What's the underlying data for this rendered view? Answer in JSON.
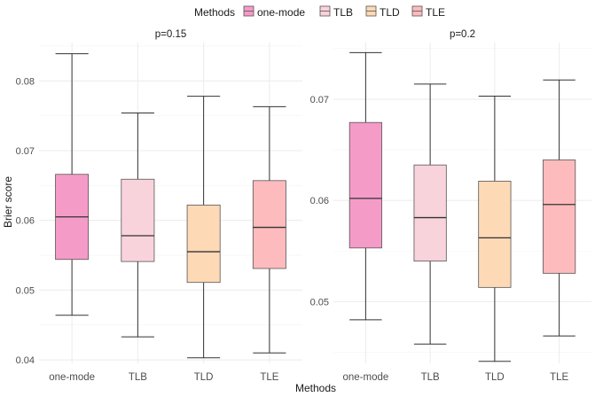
{
  "legend": {
    "title": "Methods",
    "entries": [
      {
        "label": "one-mode",
        "fill": "#F59BC8"
      },
      {
        "label": "TLB",
        "fill": "#F9D3DC"
      },
      {
        "label": "TLD",
        "fill": "#FDD9B5"
      },
      {
        "label": "TLE",
        "fill": "#FDBBBD"
      }
    ]
  },
  "xlabel": "Methods",
  "ylabel": "Brier score",
  "chart_data": [
    {
      "type": "boxplot",
      "title": "p=0.15",
      "categories": [
        "one-mode",
        "TLB",
        "TLD",
        "TLE"
      ],
      "ylim": [
        0.0395,
        0.0855
      ],
      "yticks": [
        0.04,
        0.05,
        0.06,
        0.07,
        0.08
      ],
      "ytick_labels": [
        "0.04",
        "0.05",
        "0.06",
        "0.07",
        "0.08"
      ],
      "grid": true,
      "boxes": [
        {
          "name": "one-mode",
          "whisker_low": 0.0464,
          "q1": 0.0544,
          "median": 0.0605,
          "q3": 0.0666,
          "whisker_high": 0.0839
        },
        {
          "name": "TLB",
          "whisker_low": 0.0433,
          "q1": 0.0541,
          "median": 0.0578,
          "q3": 0.0659,
          "whisker_high": 0.0754
        },
        {
          "name": "TLD",
          "whisker_low": 0.0403,
          "q1": 0.0511,
          "median": 0.0555,
          "q3": 0.0622,
          "whisker_high": 0.0778
        },
        {
          "name": "TLE",
          "whisker_low": 0.041,
          "q1": 0.0531,
          "median": 0.059,
          "q3": 0.0657,
          "whisker_high": 0.0763
        }
      ]
    },
    {
      "type": "boxplot",
      "title": "p=0.2",
      "categories": [
        "one-mode",
        "TLB",
        "TLD",
        "TLE"
      ],
      "ylim": [
        0.0439,
        0.0756
      ],
      "yticks": [
        0.05,
        0.06,
        0.07
      ],
      "ytick_labels": [
        "0.05",
        "0.06",
        "0.07"
      ],
      "grid": true,
      "boxes": [
        {
          "name": "one-mode",
          "whisker_low": 0.0482,
          "q1": 0.0553,
          "median": 0.0602,
          "q3": 0.0677,
          "whisker_high": 0.0746
        },
        {
          "name": "TLB",
          "whisker_low": 0.0458,
          "q1": 0.054,
          "median": 0.0583,
          "q3": 0.0635,
          "whisker_high": 0.0715
        },
        {
          "name": "TLD",
          "whisker_low": 0.0441,
          "q1": 0.0514,
          "median": 0.0563,
          "q3": 0.0619,
          "whisker_high": 0.0703
        },
        {
          "name": "TLE",
          "whisker_low": 0.0466,
          "q1": 0.0528,
          "median": 0.0596,
          "q3": 0.064,
          "whisker_high": 0.0719
        }
      ]
    }
  ]
}
